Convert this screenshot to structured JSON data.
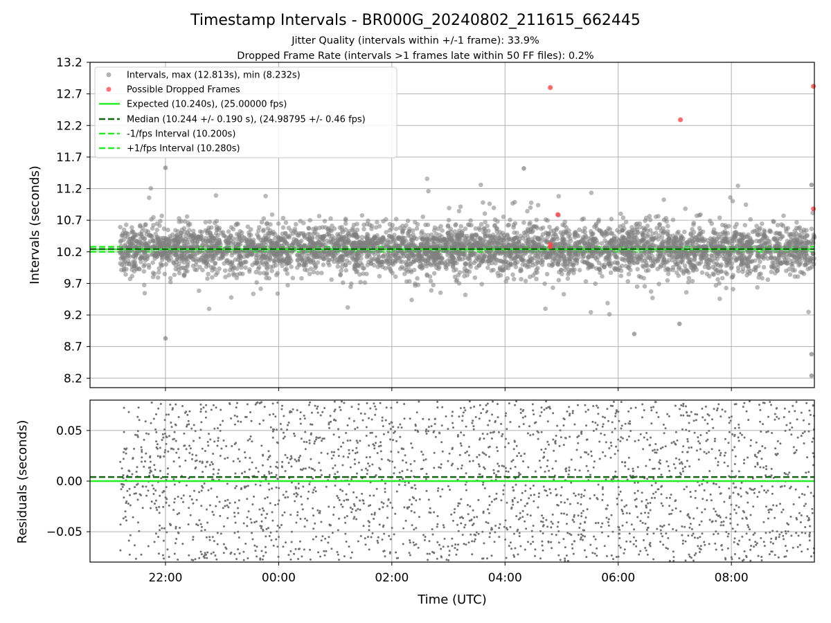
{
  "chart_data": [
    {
      "type": "scatter",
      "title": "Timestamp Intervals - BR000G_20240802_211615_662445",
      "subtitle_lines": [
        "Jitter Quality (intervals within +/-1 frame): 33.9%",
        "Dropped Frame Rate (intervals >1 frames late within 50 FF files): 0.2%"
      ],
      "ylabel": "Intervals (seconds)",
      "xlim": [
        "20:40",
        "09:28"
      ],
      "ylim": [
        8.05,
        13.2
      ],
      "yticks": [
        "8.2",
        "8.7",
        "9.2",
        "9.7",
        "10.2",
        "10.7",
        "11.2",
        "11.7",
        "12.2",
        "12.7",
        "13.2"
      ],
      "grid": true,
      "legend_position": "upper left",
      "legend": [
        {
          "label": "Intervals, max (12.813s), min (8.232s)",
          "color": "#808080",
          "style": "marker"
        },
        {
          "label": "Possible Dropped Frames",
          "color": "#ff4444",
          "style": "marker"
        },
        {
          "label": "Expected (10.240s), (25.00000 fps)",
          "color": "#22ee22",
          "style": "solid"
        },
        {
          "label": "Median (10.244 +/- 0.190 s), (24.98795 +/- 0.46 fps)",
          "color": "#116611",
          "style": "dashed"
        },
        {
          "label": "-1/fps Interval (10.200s)",
          "color": "#22ee22",
          "style": "dashed"
        },
        {
          "label": "+1/fps Interval (10.280s)",
          "color": "#22ee22",
          "style": "dashed"
        }
      ],
      "reference_lines": {
        "expected": 10.24,
        "median": 10.244,
        "minus_one_fps": 10.2,
        "plus_one_fps": 10.28
      },
      "series": [
        {
          "name": "Intervals",
          "color": "#808080",
          "time_range": [
            "21:12",
            "09:28"
          ],
          "median": 10.244,
          "std": 0.19,
          "count": 4400
        },
        {
          "name": "Possible Dropped Frames",
          "color": "#ff4444",
          "points": [
            {
              "x": "04:48",
              "y": 12.8
            },
            {
              "x": "04:48",
              "y": 10.32
            },
            {
              "x": "04:48",
              "y": 10.28
            },
            {
              "x": "04:56",
              "y": 10.79
            },
            {
              "x": "07:06",
              "y": 12.29
            },
            {
              "x": "09:27",
              "y": 12.82
            },
            {
              "x": "09:27",
              "y": 10.88
            }
          ]
        }
      ],
      "annotated_outliers": [
        {
          "x": "22:00",
          "y": 11.53
        },
        {
          "x": "22:00",
          "y": 8.83
        },
        {
          "x": "04:20",
          "y": 11.52
        },
        {
          "x": "07:05",
          "y": 9.06
        },
        {
          "x": "09:25",
          "y": 8.58
        },
        {
          "x": "09:25",
          "y": 8.24
        },
        {
          "x": "09:25",
          "y": 11.26
        },
        {
          "x": "06:17",
          "y": 8.9
        }
      ]
    },
    {
      "type": "scatter",
      "xlabel": "Time (UTC)",
      "ylabel": "Residuals (seconds)",
      "xlim": [
        "20:40",
        "09:28"
      ],
      "ylim": [
        -0.08,
        0.08
      ],
      "yticks": [
        "−0.05",
        "0.00",
        "0.05"
      ],
      "xticks": [
        "22:00",
        "00:00",
        "02:00",
        "04:00",
        "06:00",
        "08:00"
      ],
      "grid": true,
      "reference_lines": {
        "zero": 0.0,
        "median_offset": 0.004
      },
      "series": [
        {
          "name": "Residuals",
          "color": "#707070",
          "time_range": [
            "21:12",
            "09:28"
          ],
          "count": 2400
        }
      ]
    }
  ]
}
